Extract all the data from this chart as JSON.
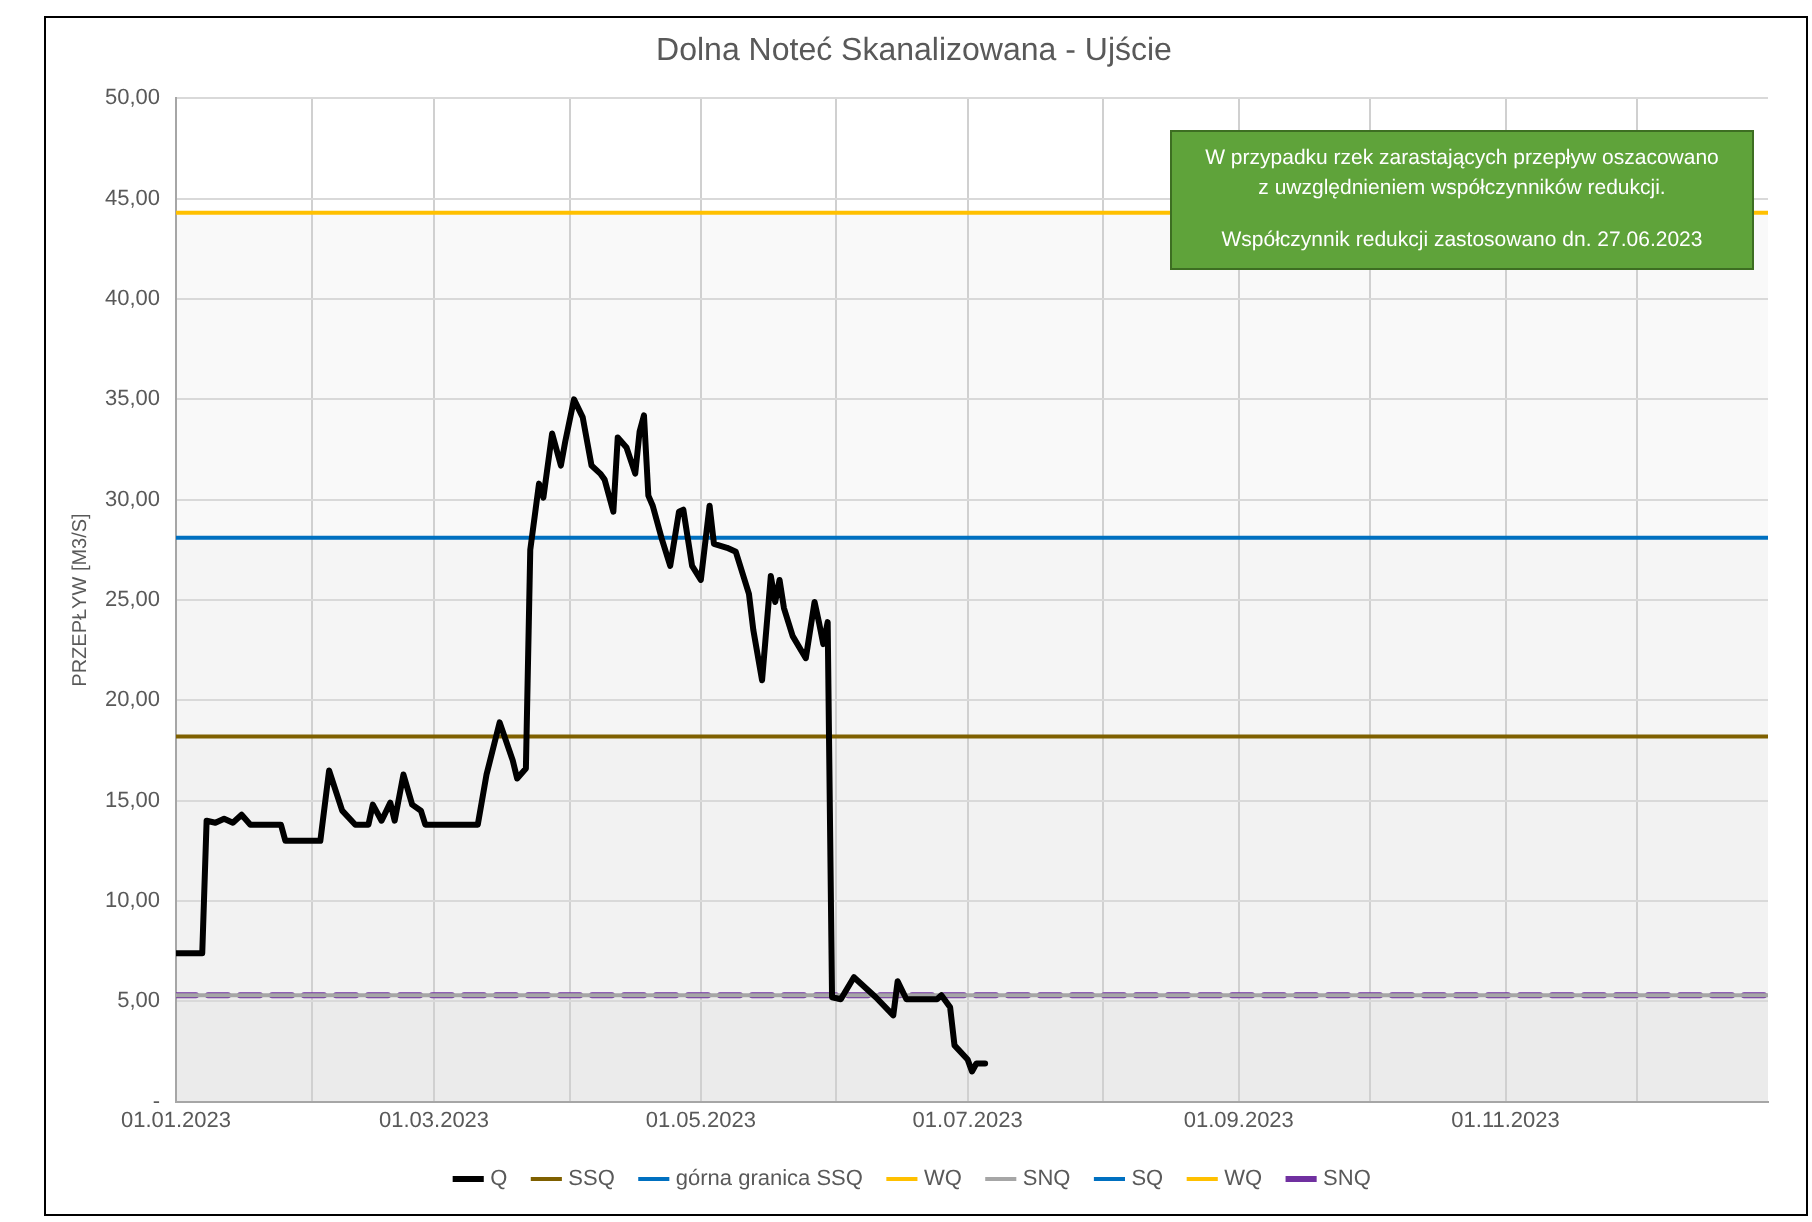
{
  "chart_data": {
    "type": "line",
    "title": "Dolna Noteć Skanalizowana - Ujście",
    "ylabel": "PRZEPŁYW [M3/S]",
    "xlim": [
      "2023-01-01",
      "2023-12-31"
    ],
    "xticks": [
      {
        "value": "2023-01-01",
        "label": "01.01.2023"
      },
      {
        "value": "2023-02-01",
        "label": null
      },
      {
        "value": "2023-03-01",
        "label": "01.03.2023"
      },
      {
        "value": "2023-04-01",
        "label": null
      },
      {
        "value": "2023-05-01",
        "label": "01.05.2023"
      },
      {
        "value": "2023-06-01",
        "label": null
      },
      {
        "value": "2023-07-01",
        "label": "01.07.2023"
      },
      {
        "value": "2023-08-01",
        "label": null
      },
      {
        "value": "2023-09-01",
        "label": "01.09.2023"
      },
      {
        "value": "2023-10-01",
        "label": null
      },
      {
        "value": "2023-11-01",
        "label": "01.11.2023"
      },
      {
        "value": "2023-12-01",
        "label": null
      }
    ],
    "ylim": [
      0,
      50
    ],
    "yticks": [
      {
        "value": 0,
        "label": "-"
      },
      {
        "value": 5,
        "label": "5,00"
      },
      {
        "value": 10,
        "label": "10,00"
      },
      {
        "value": 15,
        "label": "15,00"
      },
      {
        "value": 20,
        "label": "20,00"
      },
      {
        "value": 25,
        "label": "25,00"
      },
      {
        "value": 30,
        "label": "30,00"
      },
      {
        "value": 35,
        "label": "35,00"
      },
      {
        "value": 40,
        "label": "40,00"
      },
      {
        "value": 45,
        "label": "45,00"
      },
      {
        "value": 50,
        "label": "50,00"
      }
    ],
    "grid": true,
    "legend": "bottom",
    "marker": "none",
    "bands": [
      {
        "axis": "y",
        "from": 0,
        "to": 5.3,
        "color": "#ebebeb"
      },
      {
        "axis": "y",
        "from": 5.3,
        "to": 18.2,
        "color": "#f2f2f2"
      },
      {
        "axis": "y",
        "from": 18.2,
        "to": 28.1,
        "color": "#f5f5f5"
      },
      {
        "axis": "y",
        "from": 28.1,
        "to": 44.3,
        "color": "#f9f9f9"
      }
    ],
    "annotations": [
      "W przypadku rzek zarastających przepływ oszacowano z uwzględnieniem współczynników redukcji.",
      "Współczynnik redukcji zastosowano dn. 27.06.2023"
    ],
    "series": [
      {
        "name": "Q",
        "color": "#000000",
        "x": [
          "2023-01-01",
          "2023-01-07",
          "2023-01-08",
          "2023-01-10",
          "2023-01-12",
          "2023-01-14",
          "2023-01-16",
          "2023-01-18",
          "2023-01-25",
          "2023-01-26",
          "2023-02-03",
          "2023-02-05",
          "2023-02-08",
          "2023-02-11",
          "2023-02-14",
          "2023-02-15",
          "2023-02-17",
          "2023-02-19",
          "2023-02-20",
          "2023-02-22",
          "2023-02-24",
          "2023-02-26",
          "2023-02-27",
          "2023-03-11",
          "2023-03-13",
          "2023-03-16",
          "2023-03-19",
          "2023-03-20",
          "2023-03-22",
          "2023-03-23",
          "2023-03-25",
          "2023-03-26",
          "2023-03-28",
          "2023-03-30",
          "2023-03-31",
          "2023-04-02",
          "2023-04-04",
          "2023-04-06",
          "2023-04-08",
          "2023-04-09",
          "2023-04-11",
          "2023-04-12",
          "2023-04-14",
          "2023-04-16",
          "2023-04-17",
          "2023-04-18",
          "2023-04-19",
          "2023-04-20",
          "2023-04-22",
          "2023-04-24",
          "2023-04-26",
          "2023-04-27",
          "2023-04-29",
          "2023-05-01",
          "2023-05-03",
          "2023-05-04",
          "2023-05-07",
          "2023-05-09",
          "2023-05-12",
          "2023-05-13",
          "2023-05-15",
          "2023-05-17",
          "2023-05-18",
          "2023-05-19",
          "2023-05-20",
          "2023-05-22",
          "2023-05-25",
          "2023-05-27",
          "2023-05-28",
          "2023-05-29",
          "2023-05-30",
          "2023-05-31",
          "2023-06-02",
          "2023-06-05",
          "2023-06-10",
          "2023-06-14",
          "2023-06-15",
          "2023-06-17",
          "2023-06-24",
          "2023-06-25",
          "2023-06-27",
          "2023-06-28",
          "2023-07-01",
          "2023-07-02",
          "2023-07-03",
          "2023-07-05"
        ],
        "values": [
          7.4,
          7.4,
          14.0,
          13.9,
          14.1,
          13.9,
          14.3,
          13.8,
          13.8,
          13.0,
          13.0,
          16.5,
          14.5,
          13.8,
          13.8,
          14.8,
          14.0,
          14.9,
          14.0,
          16.3,
          14.8,
          14.5,
          13.8,
          13.8,
          16.3,
          18.9,
          17.0,
          16.1,
          16.6,
          27.5,
          30.8,
          30.1,
          33.3,
          31.7,
          32.9,
          35.0,
          34.1,
          31.7,
          31.3,
          31.0,
          29.4,
          33.1,
          32.6,
          31.3,
          33.4,
          34.2,
          30.2,
          29.7,
          28.1,
          26.7,
          29.4,
          29.5,
          26.7,
          26.0,
          29.7,
          27.8,
          27.6,
          27.4,
          25.3,
          23.5,
          21.0,
          26.2,
          24.9,
          26.0,
          24.6,
          23.2,
          22.1,
          24.9,
          23.9,
          22.8,
          23.9,
          5.2,
          5.1,
          6.2,
          5.2,
          4.3,
          6.0,
          5.1,
          5.1,
          5.3,
          4.7,
          2.8,
          2.1,
          1.5,
          1.9,
          1.9
        ]
      },
      {
        "name": "SSQ",
        "color": "#7f6000",
        "x": [
          "2023-01-01",
          "2023-12-31"
        ],
        "values": [
          18.2,
          18.2
        ]
      },
      {
        "name": "górna granica SSQ",
        "color": "#0070c0",
        "x": [
          "2023-01-01",
          "2023-12-31"
        ],
        "values": [
          28.1,
          28.1
        ]
      },
      {
        "name": "WQ",
        "color": "#ffc000",
        "x": [
          "2023-01-01",
          "2023-12-31"
        ],
        "values": [
          44.3,
          44.3
        ]
      },
      {
        "name": "SNQ",
        "color": "#a6a6a6",
        "x": [
          "2023-01-01",
          "2023-12-31"
        ],
        "values": [
          5.3,
          5.3
        ]
      },
      {
        "name": "SQ",
        "color": "#0070c0",
        "values": [
          null
        ]
      },
      {
        "name": "WQ",
        "color": "#ffc000",
        "values": [
          null
        ]
      },
      {
        "name": "SNQ",
        "color": "#7030a0",
        "line_style": "dashed",
        "x": [
          "2023-01-01",
          "2023-12-31"
        ],
        "values": [
          5.3,
          5.3
        ]
      }
    ]
  }
}
